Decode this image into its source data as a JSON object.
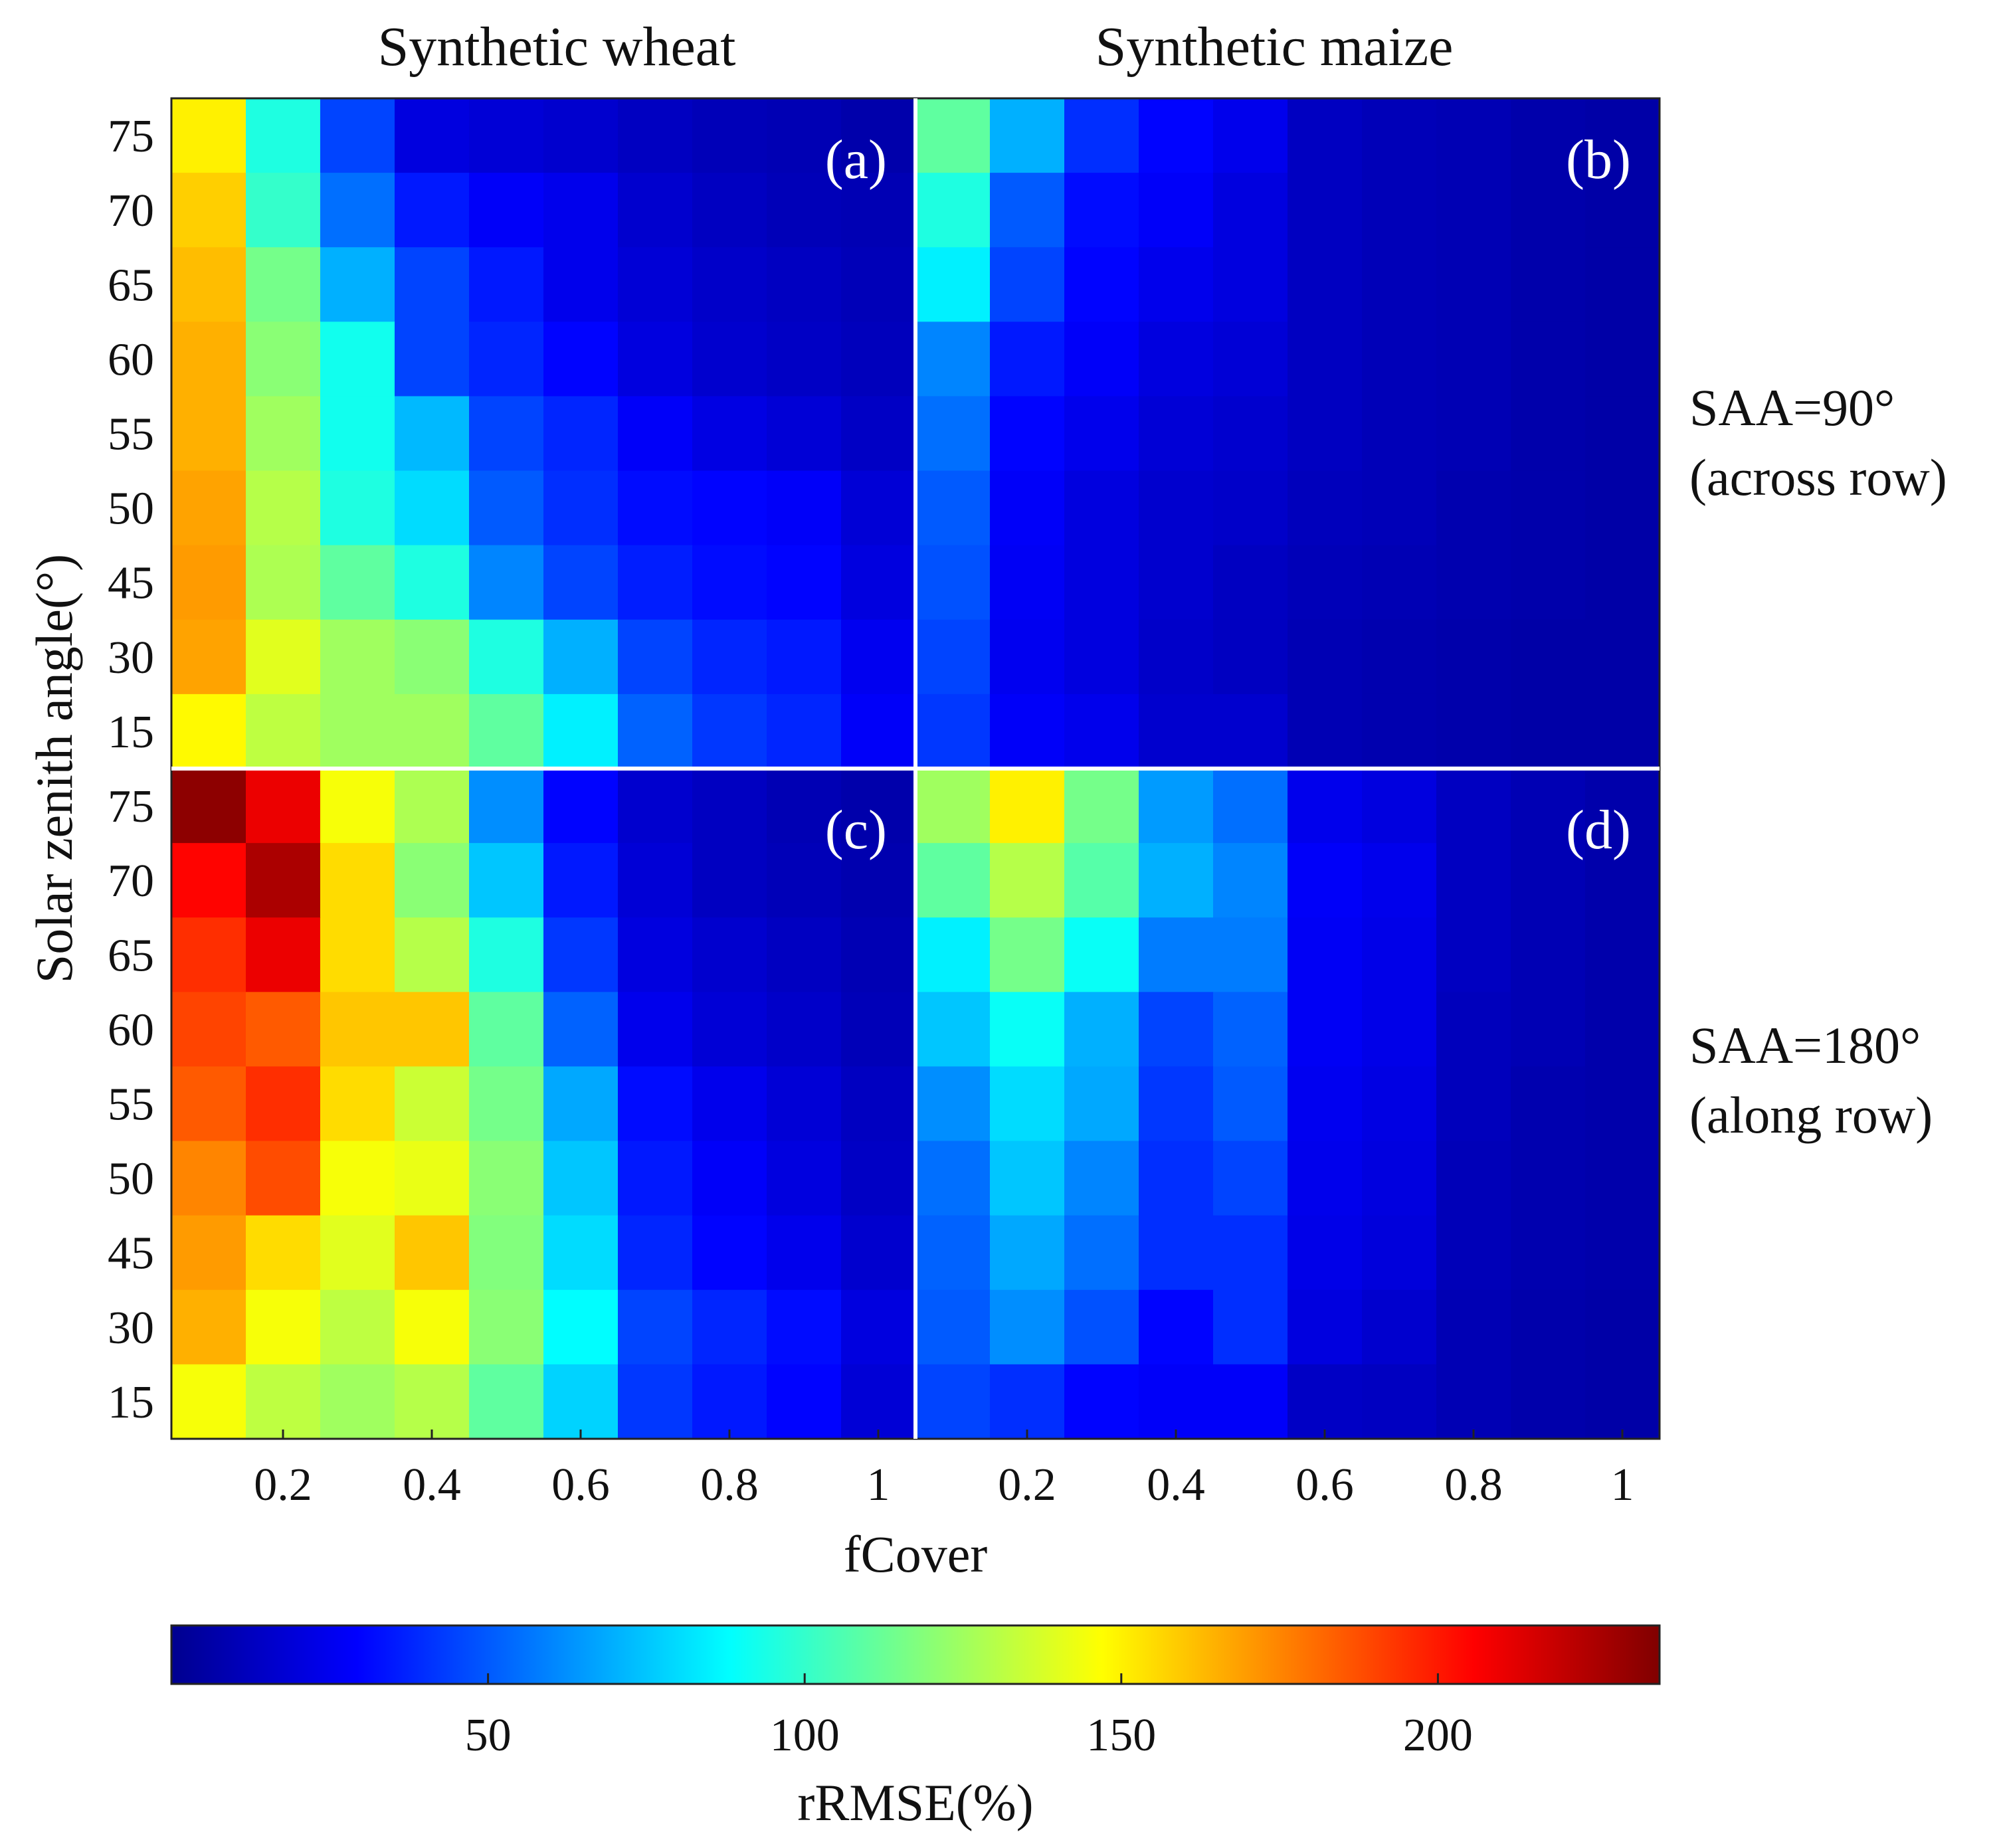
{
  "chart_data": {
    "type": "heatmap",
    "column_titles": [
      "Synthetic wheat",
      "Synthetic maize"
    ],
    "row_labels": [
      {
        "line1": "SAA=90°",
        "line2": "(across row)"
      },
      {
        "line1": "SAA=180°",
        "line2": "(along row)"
      }
    ],
    "xlabel": "fCover",
    "ylabel": "Solar zenith angle(°)",
    "x_categories": [
      0.1,
      0.2,
      0.3,
      0.4,
      0.5,
      0.6,
      0.7,
      0.8,
      0.9,
      1.0
    ],
    "x_tick_labels": [
      "0.2",
      "0.4",
      "0.6",
      "0.8",
      "1"
    ],
    "y_categories_top_to_bottom": [
      "75",
      "70",
      "65",
      "60",
      "55",
      "50",
      "45",
      "30",
      "15"
    ],
    "colorbar": {
      "label": "rRMSE(%)",
      "range": [
        0,
        235
      ],
      "colormap": "jet",
      "ticks": [
        50,
        100,
        150,
        200
      ],
      "tick_labels": [
        "50",
        "100",
        "150",
        "200"
      ]
    },
    "panels": [
      {
        "id": "a",
        "label": "(a)",
        "crop": "Synthetic wheat",
        "saa": 90,
        "values": [
          [
            150,
            95,
            45,
            22,
            20,
            18,
            15,
            13,
            12,
            10
          ],
          [
            158,
            100,
            55,
            35,
            28,
            25,
            18,
            15,
            13,
            12
          ],
          [
            162,
            115,
            70,
            45,
            35,
            25,
            20,
            17,
            15,
            13
          ],
          [
            165,
            120,
            92,
            45,
            38,
            30,
            22,
            18,
            16,
            14
          ],
          [
            165,
            125,
            92,
            72,
            45,
            38,
            28,
            23,
            20,
            16
          ],
          [
            168,
            130,
            95,
            80,
            50,
            40,
            32,
            30,
            28,
            20
          ],
          [
            170,
            128,
            110,
            95,
            60,
            45,
            36,
            32,
            30,
            22
          ],
          [
            168,
            140,
            125,
            120,
            95,
            70,
            45,
            38,
            35,
            26
          ],
          [
            148,
            132,
            125,
            125,
            110,
            85,
            52,
            42,
            38,
            28
          ]
        ]
      },
      {
        "id": "b",
        "label": "(b)",
        "crop": "Synthetic maize",
        "saa": 90,
        "values": [
          [
            110,
            70,
            40,
            30,
            25,
            15,
            13,
            12,
            10,
            9
          ],
          [
            95,
            50,
            32,
            28,
            22,
            15,
            13,
            12,
            10,
            9
          ],
          [
            85,
            45,
            30,
            25,
            22,
            15,
            13,
            12,
            10,
            9
          ],
          [
            60,
            35,
            28,
            22,
            20,
            15,
            13,
            12,
            10,
            9
          ],
          [
            55,
            30,
            25,
            20,
            18,
            15,
            13,
            12,
            10,
            9
          ],
          [
            50,
            28,
            22,
            18,
            17,
            14,
            13,
            11,
            10,
            9
          ],
          [
            48,
            27,
            22,
            18,
            15,
            13,
            12,
            11,
            10,
            9
          ],
          [
            45,
            26,
            22,
            17,
            15,
            12,
            11,
            10,
            9,
            9
          ],
          [
            42,
            28,
            25,
            18,
            18,
            12,
            11,
            10,
            9,
            9
          ]
        ]
      },
      {
        "id": "c",
        "label": "(c)",
        "crop": "Synthetic wheat",
        "saa": 180,
        "values": [
          [
            232,
            210,
            145,
            128,
            62,
            30,
            18,
            15,
            12,
            10
          ],
          [
            205,
            225,
            155,
            120,
            75,
            35,
            20,
            15,
            13,
            11
          ],
          [
            195,
            210,
            155,
            130,
            95,
            42,
            22,
            18,
            15,
            12
          ],
          [
            190,
            185,
            160,
            160,
            110,
            52,
            25,
            20,
            17,
            13
          ],
          [
            185,
            195,
            155,
            135,
            115,
            68,
            32,
            25,
            20,
            15
          ],
          [
            175,
            188,
            145,
            142,
            120,
            75,
            35,
            28,
            22,
            16
          ],
          [
            170,
            155,
            140,
            160,
            118,
            80,
            38,
            30,
            25,
            18
          ],
          [
            165,
            145,
            132,
            145,
            120,
            88,
            45,
            38,
            32,
            22
          ],
          [
            145,
            132,
            125,
            130,
            110,
            78,
            42,
            35,
            30,
            20
          ]
        ]
      },
      {
        "id": "d",
        "label": "(d)",
        "crop": "Synthetic maize",
        "saa": 180,
        "values": [
          [
            125,
            150,
            115,
            65,
            55,
            25,
            22,
            15,
            12,
            10
          ],
          [
            110,
            130,
            108,
            70,
            60,
            28,
            25,
            15,
            12,
            10
          ],
          [
            85,
            115,
            90,
            58,
            58,
            27,
            24,
            15,
            12,
            10
          ],
          [
            75,
            90,
            70,
            45,
            52,
            27,
            24,
            14,
            12,
            10
          ],
          [
            62,
            80,
            68,
            42,
            50,
            26,
            23,
            14,
            11,
            10
          ],
          [
            55,
            75,
            60,
            40,
            45,
            25,
            22,
            13,
            11,
            10
          ],
          [
            52,
            68,
            55,
            40,
            40,
            24,
            21,
            13,
            11,
            10
          ],
          [
            50,
            62,
            48,
            30,
            40,
            22,
            18,
            12,
            10,
            9
          ],
          [
            45,
            40,
            30,
            28,
            28,
            16,
            15,
            12,
            10,
            9
          ]
        ]
      }
    ]
  }
}
